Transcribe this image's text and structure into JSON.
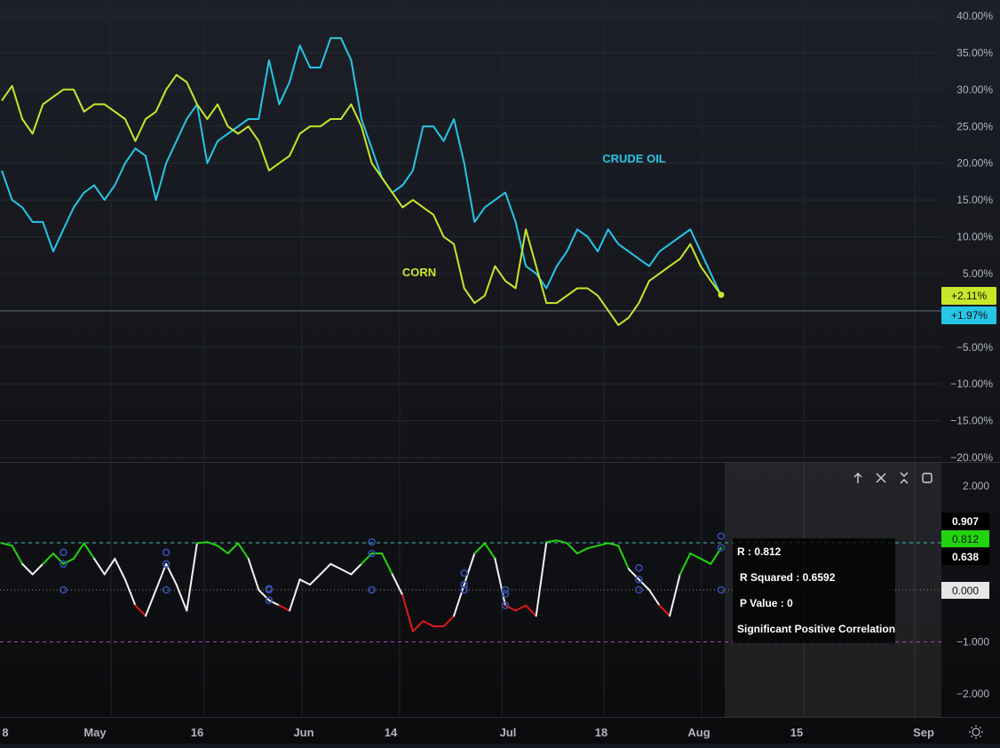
{
  "colors": {
    "corn": "#c8e62a",
    "crude_oil": "#25c6e6",
    "corr_high": "#22d40f",
    "corr_mid": "#f2f2f2",
    "corr_low": "#e01818",
    "marker": "#3250b0",
    "upper_line": "#3fbfbf",
    "lower_line": "#c038c0",
    "zero_line": "#8c8c8c"
  },
  "x_axis": {
    "labels": [
      "8",
      "May",
      "16",
      "Jun",
      "14",
      "Jul",
      "18",
      "Aug",
      "15",
      "Sep"
    ]
  },
  "icons": {
    "pane_controls": [
      "arrow-up-icon",
      "close-icon",
      "collapse-icon",
      "maximize-icon"
    ],
    "settings": "sun-settings-icon"
  },
  "main_pane": {
    "y_ticks": [
      "40.00%",
      "35.00%",
      "30.00%",
      "25.00%",
      "20.00%",
      "15.00%",
      "10.00%",
      "5.00%",
      "−5.00%",
      "−10.00%",
      "−15.00%",
      "−20.00%"
    ],
    "series_labels": {
      "crude_oil": "CRUDE OIL",
      "corn": "CORN"
    },
    "last_value_badges": {
      "corn": "+2.11%",
      "crude_oil": "+1.97%"
    }
  },
  "indicator_pane": {
    "y_ticks": [
      "2.000",
      "−1.000",
      "−2.000"
    ],
    "level_badges": {
      "upper": "0.907",
      "current": "0.812",
      "lower": "0.638",
      "zero": "0.000"
    },
    "stats": {
      "r": "R : 0.812",
      "r_squared": "R Squared : 0.6592",
      "p_value": "P Value : 0",
      "significance": "Significant Positive Correlation"
    }
  },
  "chart_data": [
    {
      "type": "line",
      "y_unit": "%",
      "ylim": [
        -20,
        40
      ],
      "x_ticks": [
        "8",
        "May",
        "16",
        "Jun",
        "14",
        "Jul",
        "18",
        "Aug",
        "15",
        "Sep"
      ],
      "x": [
        "Apr 28",
        "Apr 29",
        "Apr 30",
        "May 1",
        "May 2",
        "May 5",
        "May 6",
        "May 7",
        "May 8",
        "May 9",
        "May 12",
        "May 13",
        "May 14",
        "May 15",
        "May 16",
        "May 19",
        "May 20",
        "May 21",
        "May 22",
        "May 23",
        "May 26",
        "May 27",
        "May 28",
        "May 29",
        "May 30",
        "Jun 2",
        "Jun 3",
        "Jun 4",
        "Jun 5",
        "Jun 6",
        "Jun 9",
        "Jun 10",
        "Jun 11",
        "Jun 12",
        "Jun 13",
        "Jun 16",
        "Jun 17",
        "Jun 18",
        "Jun 19",
        "Jun 20",
        "Jun 23",
        "Jun 24",
        "Jun 25",
        "Jun 26",
        "Jun 27",
        "Jun 30",
        "Jul 1",
        "Jul 2",
        "Jul 3",
        "Jul 4",
        "Jul 7",
        "Jul 8",
        "Jul 9",
        "Jul 10",
        "Jul 11",
        "Jul 14",
        "Jul 15",
        "Jul 16",
        "Jul 17",
        "Jul 18",
        "Jul 21",
        "Jul 22",
        "Jul 23",
        "Jul 24",
        "Jul 25",
        "Jul 28",
        "Jul 29",
        "Jul 30",
        "Jul 31",
        "Aug 1",
        "Aug 4"
      ],
      "series": [
        {
          "name": "CORN",
          "values": [
            28.5,
            30.5,
            26,
            24,
            28,
            29,
            30,
            30,
            27,
            28,
            28,
            27,
            26,
            23,
            26,
            27,
            30,
            32,
            31,
            28,
            26,
            28,
            25,
            24,
            25,
            23,
            19,
            20,
            21,
            24,
            25,
            25,
            26,
            26,
            28,
            25,
            20,
            18,
            16,
            14,
            15,
            14,
            13,
            10,
            9,
            3,
            1,
            2,
            6,
            4,
            3,
            11,
            6,
            1,
            1,
            2,
            3,
            3,
            2,
            0,
            -2,
            -1,
            1,
            4,
            5,
            6,
            7,
            9,
            6,
            4,
            2.11
          ]
        },
        {
          "name": "CRUDE OIL",
          "values": [
            19,
            15,
            14,
            12,
            12,
            8,
            11,
            14,
            16,
            17,
            15,
            17,
            20,
            22,
            21,
            15,
            20,
            23,
            26,
            28,
            20,
            23,
            24,
            25,
            26,
            26,
            34,
            28,
            31,
            36,
            33,
            33,
            37,
            37,
            34,
            26,
            22,
            18,
            16,
            17,
            19,
            25,
            25,
            23,
            26,
            20,
            12,
            14,
            15,
            16,
            12,
            6,
            5,
            3,
            6,
            8,
            11,
            10,
            8,
            11,
            9,
            8,
            7,
            6,
            8,
            9,
            10,
            11,
            8,
            5,
            1.97
          ]
        }
      ],
      "annotations": [
        "CRUDE OIL",
        "CORN"
      ],
      "last_values": {
        "CORN": "+2.11%",
        "CRUDE OIL": "+1.97%"
      }
    },
    {
      "type": "line",
      "ylim": [
        -2,
        2
      ],
      "y_ticks": [
        2,
        -1,
        -2
      ],
      "reference_lines": [
        0.907,
        0.638,
        0,
        -1
      ],
      "series": [
        {
          "name": "",
          "values": [
            0.9,
            0.85,
            0.5,
            0.3,
            0.5,
            0.7,
            0.5,
            0.6,
            0.9,
            0.6,
            0.3,
            0.6,
            0.2,
            -0.3,
            -0.5,
            0.0,
            0.5,
            0.1,
            -0.4,
            0.9,
            0.92,
            0.85,
            0.7,
            0.9,
            0.6,
            0.0,
            -0.2,
            -0.3,
            -0.4,
            0.2,
            0.1,
            0.3,
            0.5,
            0.4,
            0.3,
            0.5,
            0.7,
            0.7,
            0.3,
            -0.1,
            -0.8,
            -0.6,
            -0.7,
            -0.7,
            -0.5,
            0.1,
            0.7,
            0.9,
            0.6,
            -0.3,
            -0.4,
            -0.3,
            -0.5,
            0.92,
            0.95,
            0.9,
            0.7,
            0.8,
            0.85,
            0.9,
            0.85,
            0.4,
            0.2,
            0.0,
            -0.3,
            -0.5,
            0.3,
            0.7,
            0.6,
            0.5,
            0.812
          ]
        }
      ]
    }
  ]
}
